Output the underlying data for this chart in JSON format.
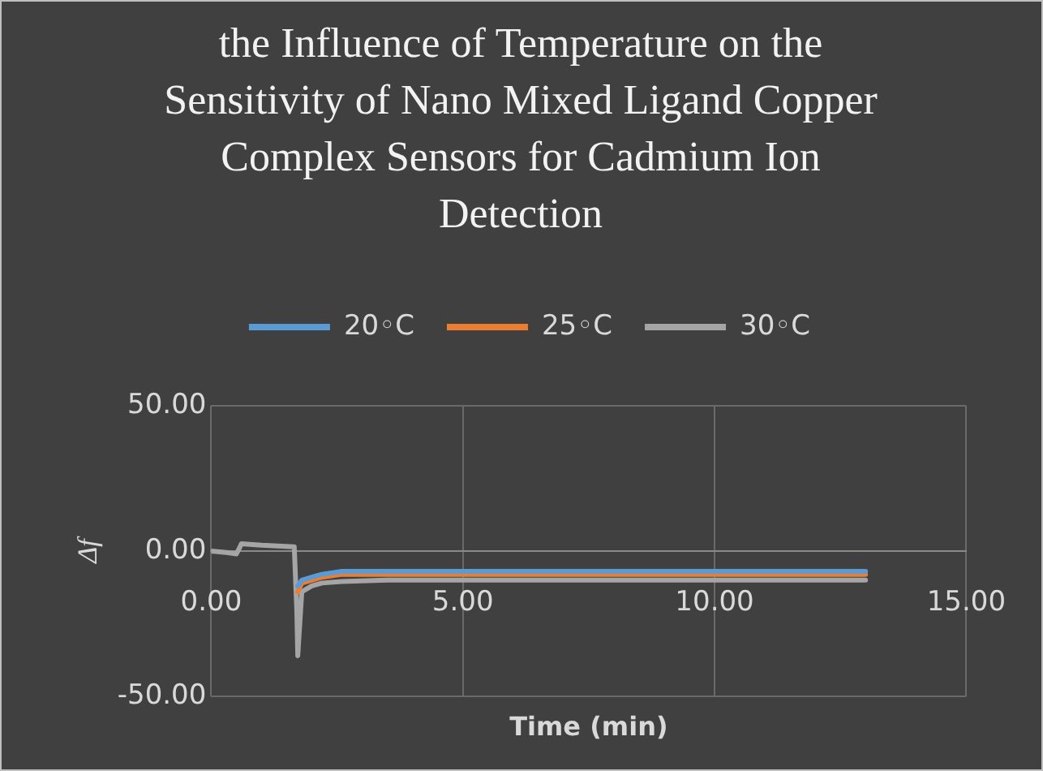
{
  "chart_data": {
    "type": "line",
    "title": "the Influence of Temperature on the Sensitivity of Nano Mixed Ligand Copper Complex Sensors for Cadmium Ion Detection",
    "xlabel": "Time (min)",
    "ylabel": "Δf",
    "series": [
      {
        "name": "20◦C",
        "color": "#5b9bd5",
        "x": [
          1.72,
          1.8,
          2.0,
          2.2,
          2.6,
          3.5,
          13
        ],
        "values": [
          -12,
          -10,
          -9,
          -8,
          -7,
          -7,
          -7
        ]
      },
      {
        "name": "25◦C",
        "color": "#ed7d31",
        "x": [
          1.72,
          1.8,
          2.0,
          2.2,
          2.6,
          3.5,
          13
        ],
        "values": [
          -14,
          -11,
          -10,
          -9,
          -8,
          -8,
          -8
        ]
      },
      {
        "name": "30◦C",
        "color": "#a5a5a5",
        "x": [
          0,
          0.3,
          0.5,
          0.56,
          0.6,
          1.0,
          1.65,
          1.7,
          1.72,
          1.8,
          2.0,
          2.2,
          2.6,
          3.5,
          13
        ],
        "values": [
          0,
          -0.5,
          -1,
          1,
          2.5,
          2,
          1.5,
          -20,
          -36,
          -14,
          -12,
          -11,
          -10.5,
          -10,
          -10
        ]
      }
    ],
    "xlim": [
      0,
      15
    ],
    "xticks": [
      {
        "value": 0,
        "label": "0.00"
      },
      {
        "value": 5,
        "label": "5.00"
      },
      {
        "value": 10,
        "label": "10.00"
      },
      {
        "value": 15,
        "label": "15.00"
      }
    ],
    "ylim": [
      -50,
      50
    ],
    "yticks": [
      {
        "value": -50,
        "label": "-50.00"
      },
      {
        "value": 0,
        "label": "0.00"
      },
      {
        "value": 50,
        "label": "50.00"
      }
    ],
    "grid": true,
    "legend": "top",
    "marker": "none",
    "line_style": "solid"
  }
}
